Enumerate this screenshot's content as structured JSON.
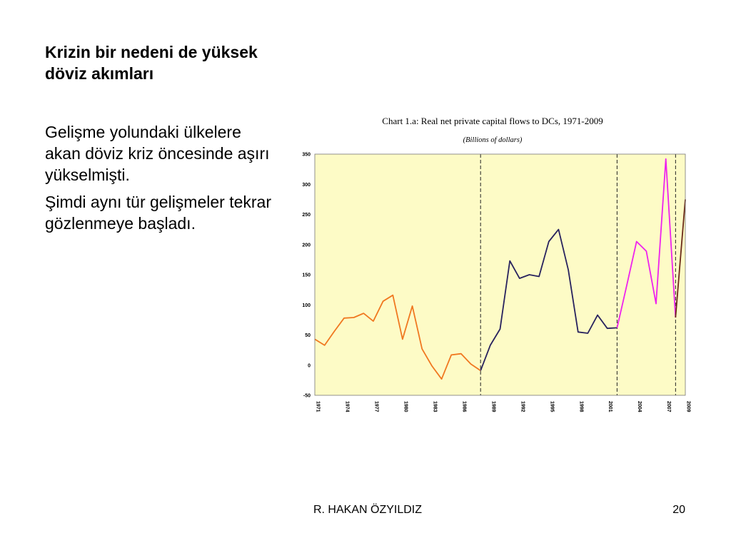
{
  "slide": {
    "title": "Krizin bir nedeni de yüksek döviz akımları",
    "paragraphs": [
      "Gelişme yolundaki ülkelere akan döviz kriz öncesinde aşırı yükselmişti.",
      "Şimdi aynı tür gelişmeler tekrar gözlenmeye başladı."
    ],
    "footer_author": "R. HAKAN ÖZYILDIZ",
    "page_number": "20"
  },
  "chart_data": {
    "type": "line",
    "title": "Chart 1.a:  Real net private capital flows to DCs, 1971-2009",
    "subtitle": "(Billions of dollars)",
    "xlabel": "",
    "ylabel": "",
    "ylim": [
      -50,
      350
    ],
    "yticks": [
      350,
      300,
      250,
      200,
      150,
      100,
      50,
      0,
      -50
    ],
    "xlim": [
      1971,
      2009
    ],
    "xticks": [
      "1971",
      "1974",
      "1977",
      "1980",
      "1983",
      "1986",
      "1989",
      "1992",
      "1995",
      "1998",
      "2001",
      "2004",
      "2007",
      "2009"
    ],
    "background_color": "#fdfbc6",
    "grid": false,
    "legend": "none",
    "period_dividers_x": [
      1988.0,
      2002.0,
      2008.0
    ],
    "series": [
      {
        "color": "#f07820",
        "x": [
          1971,
          1972,
          1973,
          1974,
          1975,
          1976,
          1977,
          1978,
          1979,
          1980,
          1981,
          1982,
          1983,
          1984,
          1985,
          1986,
          1987,
          1988
        ],
        "values": [
          43,
          33,
          56,
          78,
          79,
          86,
          73,
          106,
          116,
          43,
          98,
          27,
          -1,
          -23,
          17,
          19,
          2,
          -9
        ]
      },
      {
        "color": "#28225e",
        "x": [
          1988,
          1989,
          1990,
          1991,
          1992,
          1993,
          1994,
          1995,
          1996,
          1997,
          1998,
          1999,
          2000,
          2001,
          2002
        ],
        "values": [
          -9,
          33,
          60,
          173,
          144,
          150,
          147,
          205,
          225,
          158,
          55,
          53,
          83,
          61,
          62
        ]
      },
      {
        "color": "#ee22ee",
        "x": [
          2002,
          2003,
          2004,
          2005,
          2006,
          2007,
          2008
        ],
        "values": [
          62,
          133,
          205,
          189,
          102,
          342,
          79
        ]
      },
      {
        "color": "#6b2a1a",
        "x": [
          2008,
          2009
        ],
        "values": [
          79,
          275
        ]
      }
    ]
  }
}
